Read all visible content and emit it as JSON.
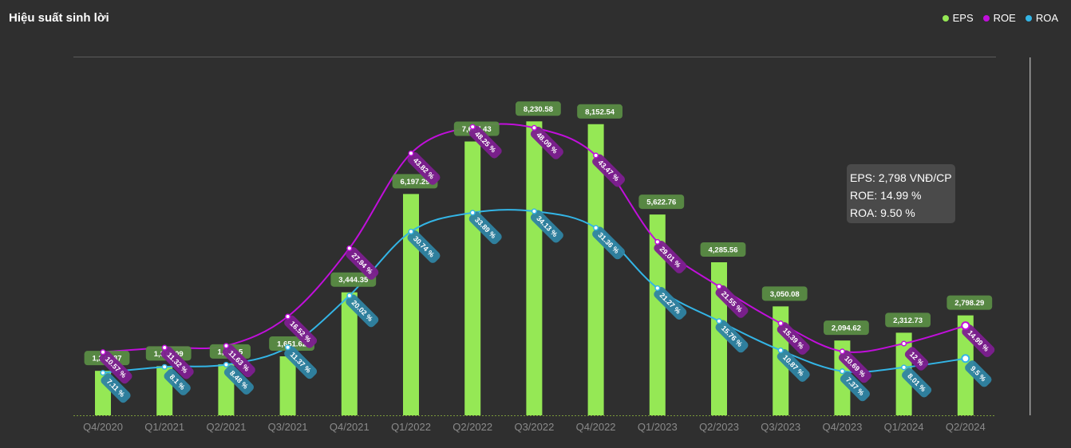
{
  "title": "Hiệu suất sinh lời",
  "legend": [
    {
      "name": "EPS",
      "color": "#95e855"
    },
    {
      "name": "ROE",
      "color": "#c10fdb"
    },
    {
      "name": "ROA",
      "color": "#33b5e6"
    }
  ],
  "tooltip": {
    "eps": "EPS: 2,798 VNĐ/CP",
    "roe": "ROE: 14.99 %",
    "roa": "ROA: 9.50 %"
  },
  "colors": {
    "background": "#2f2f2f",
    "bar": "#95e855",
    "roe": "#c10fdb",
    "roa": "#33b5e6",
    "bar_label_bg": "#5a8c44",
    "roe_label_bg": "#7d1f90",
    "roa_label_bg": "#2f84a3",
    "axis_label": "#8a8a8a"
  },
  "chart_data": {
    "type": "bar",
    "categories": [
      "Q4/2020",
      "Q1/2021",
      "Q2/2021",
      "Q3/2021",
      "Q4/2021",
      "Q1/2022",
      "Q2/2022",
      "Q3/2022",
      "Q4/2022",
      "Q1/2023",
      "Q2/2023",
      "Q3/2023",
      "Q4/2023",
      "Q1/2024",
      "Q2/2024"
    ],
    "series": [
      {
        "name": "EPS",
        "type": "bar",
        "values": [
          1245.87,
          1376.09,
          1430.5,
          1651.62,
          3444.35,
          6197.29,
          7667.43,
          8230.58,
          8152.54,
          5622.76,
          4285.56,
          3050.08,
          2094.62,
          2312.73,
          2798.29
        ],
        "labels": [
          "1,245.87",
          "1,376.09",
          "1,430.5",
          "1,651.62",
          "3,444.35",
          "6,197.29",
          "7,667.43",
          "8,230.58",
          "8,152.54",
          "5,622.76",
          "4,285.56",
          "3,050.08",
          "2,094.62",
          "2,312.73",
          "2,798.29"
        ]
      },
      {
        "name": "ROE",
        "type": "line",
        "values": [
          10.57,
          11.32,
          11.63,
          16.52,
          27.94,
          43.82,
          48.25,
          48.09,
          43.47,
          29.01,
          21.55,
          15.39,
          10.69,
          12,
          14.99
        ],
        "labels": [
          "10.57 %",
          "11.32 %",
          "11.63 %",
          "16.52 %",
          "27.94 %",
          "43.82 %",
          "48.25 %",
          "48.09 %",
          "43.47 %",
          "29.01 %",
          "21.55 %",
          "15.39 %",
          "10.69 %",
          "12 %",
          "14.99 %"
        ]
      },
      {
        "name": "ROA",
        "type": "line",
        "values": [
          7.11,
          8.1,
          8.48,
          11.37,
          20.02,
          30.74,
          33.89,
          34.13,
          31.36,
          21.27,
          15.76,
          10.87,
          7.37,
          8.01,
          9.5
        ],
        "labels": [
          "7.11 %",
          "8.1 %",
          "8.48 %",
          "11.37 %",
          "20.02 %",
          "30.74 %",
          "33.89 %",
          "34.13 %",
          "31.36 %",
          "21.27 %",
          "15.76 %",
          "10.87 %",
          "7.37 %",
          "8.01 %",
          "9.5 %"
        ]
      }
    ],
    "ylim_eps": [
      0,
      9000
    ],
    "ylim_percent": [
      0,
      60
    ],
    "grid": false,
    "legend_position": "top-right",
    "highlighted_category": "Q2/2024"
  }
}
